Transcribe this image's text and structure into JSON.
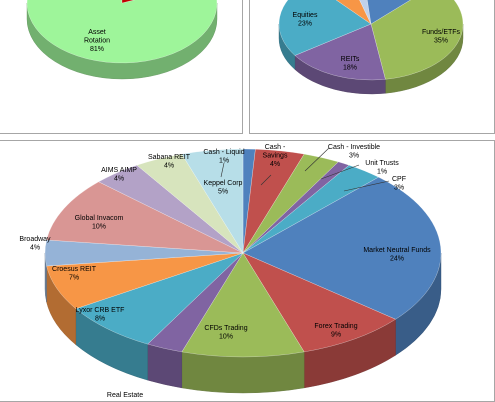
{
  "chart_data": [
    {
      "type": "pie",
      "style": "3d",
      "slices": [
        {
          "label": "Asset Rotation",
          "value": 81,
          "value_label": "81%",
          "color": "#9EF59A"
        },
        {
          "label": "",
          "value": 19,
          "value_label": "",
          "color": "#C00000"
        }
      ]
    },
    {
      "type": "pie",
      "style": "3d",
      "slices": [
        {
          "label": "Funds/ETFs",
          "value": 35,
          "value_label": "35%",
          "color": "#9BBB59"
        },
        {
          "label": "REITs",
          "value": 18,
          "value_label": "18%",
          "color": "#8064A2"
        },
        {
          "label": "Equities",
          "value": 23,
          "value_label": "23%",
          "color": "#4BACC6"
        },
        {
          "label": "",
          "value": 7,
          "value_label": "",
          "color": "#F79646"
        },
        {
          "label": "",
          "value": 3,
          "value_label": "",
          "color": "#C0D1EA"
        },
        {
          "label": "",
          "value": 14,
          "value_label": "",
          "color": "#4F81BD"
        }
      ]
    },
    {
      "type": "pie",
      "style": "3d",
      "slices": [
        {
          "label": "Cash - Liquid",
          "value": 1,
          "value_label": "1%",
          "color": "#4F81BD"
        },
        {
          "label": "Cash - Savings",
          "value": 4,
          "value_label": "4%",
          "color": "#C0504D"
        },
        {
          "label": "Cash - Investible",
          "value": 3,
          "value_label": "3%",
          "color": "#9BBB59"
        },
        {
          "label": "Unit Trusts",
          "value": 1,
          "value_label": "1%",
          "color": "#8064A2"
        },
        {
          "label": "CPF",
          "value": 3,
          "value_label": "3%",
          "color": "#4BACC6"
        },
        {
          "label": "Market Neutral Funds",
          "value": 24,
          "value_label": "24%",
          "color": "#4F81BD"
        },
        {
          "label": "Forex Trading",
          "value": 9,
          "value_label": "9%",
          "color": "#C0504D"
        },
        {
          "label": "CFDs Trading",
          "value": 10,
          "value_label": "10%",
          "color": "#9BBB59"
        },
        {
          "label": "Real Estate",
          "value": 3,
          "value_label": "",
          "color": "#8064A2"
        },
        {
          "label": "Lyxor CRB ETF",
          "value": 8,
          "value_label": "8%",
          "color": "#4BACC6"
        },
        {
          "label": "Croesus REIT",
          "value": 7,
          "value_label": "7%",
          "color": "#F79646"
        },
        {
          "label": "Broadway",
          "value": 4,
          "value_label": "4%",
          "color": "#95B3D7"
        },
        {
          "label": "Global Invacom",
          "value": 10,
          "value_label": "10%",
          "color": "#D99694"
        },
        {
          "label": "AIMS AIMP",
          "value": 4,
          "value_label": "4%",
          "color": "#B3A2C7"
        },
        {
          "label": "Sabana REIT",
          "value": 4,
          "value_label": "4%",
          "color": "#D7E4BD"
        },
        {
          "label": "Keppel Corp",
          "value": 5,
          "value_label": "5%",
          "color": "#B7DEE8"
        }
      ]
    }
  ]
}
